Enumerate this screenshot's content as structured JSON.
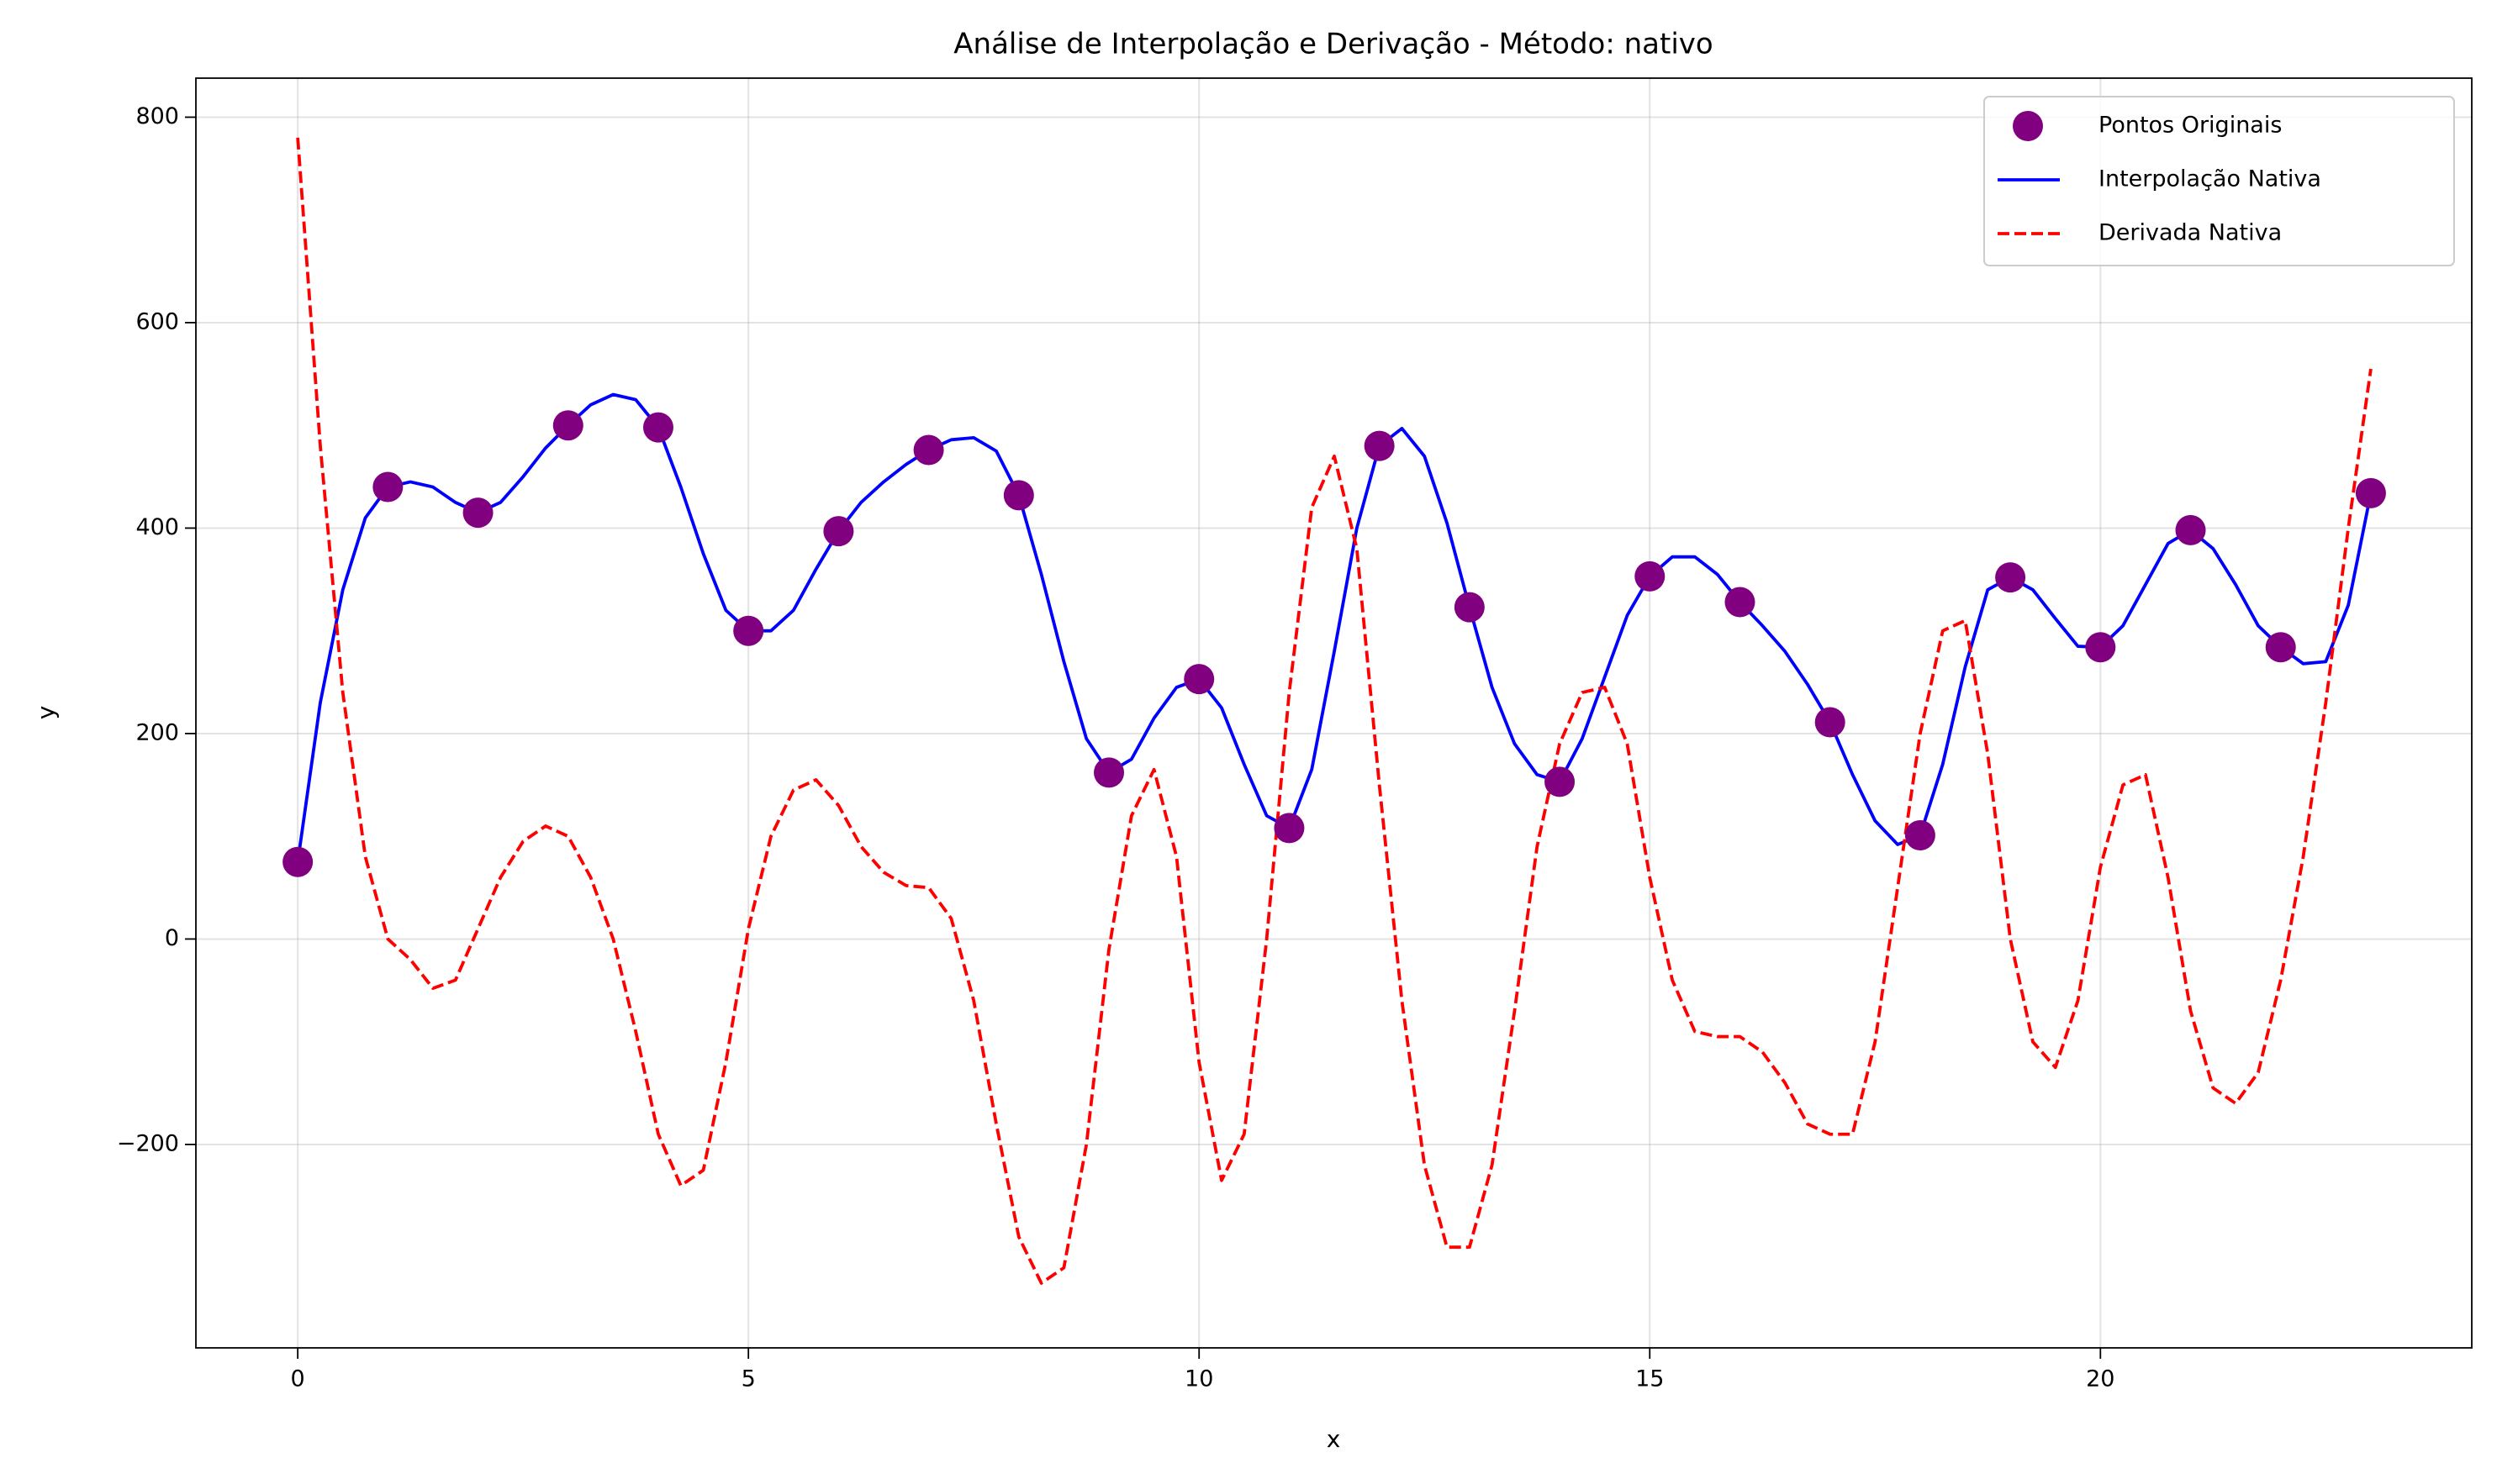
{
  "chart_data": {
    "type": "line",
    "title": "Análise de Interpolação e Derivação - Método: nativo",
    "x_label": "x",
    "y_label": "y",
    "xlim": [
      -1.13,
      24.12
    ],
    "ylim": [
      -398,
      838
    ],
    "xticks": [
      0,
      5,
      10,
      15,
      20
    ],
    "yticks": [
      {
        "value": -200,
        "label": "−200"
      },
      0,
      200,
      400,
      600,
      800
    ],
    "grid": true,
    "legend": "upper right",
    "series": [
      {
        "name": "Pontos Originais",
        "type": "scatter",
        "color": "#800080",
        "x": [
          0,
          1,
          2,
          3,
          4,
          5,
          6,
          7,
          8,
          9,
          10,
          11,
          12,
          13,
          14,
          15,
          16,
          17,
          18,
          19,
          20,
          21,
          22,
          23
        ],
        "values": [
          75,
          440,
          415,
          500,
          498,
          300,
          397,
          476,
          432,
          162,
          253,
          108,
          480,
          323,
          153,
          353,
          328,
          211,
          101,
          352,
          284,
          398,
          284,
          434
        ]
      },
      {
        "name": "Interpolação Nativa",
        "type": "line",
        "color": "#0000ff",
        "dash": "solid",
        "x": [
          0,
          0.25,
          0.5,
          0.75,
          1,
          1.25,
          1.5,
          1.75,
          2,
          2.25,
          2.5,
          2.75,
          3,
          3.25,
          3.5,
          3.75,
          4,
          4.25,
          4.5,
          4.75,
          5,
          5.25,
          5.5,
          5.75,
          6,
          6.25,
          6.5,
          6.75,
          7,
          7.25,
          7.5,
          7.75,
          8,
          8.25,
          8.5,
          8.75,
          9,
          9.25,
          9.5,
          9.75,
          10,
          10.25,
          10.5,
          10.75,
          11,
          11.25,
          11.5,
          11.75,
          12,
          12.25,
          12.5,
          12.75,
          13,
          13.25,
          13.5,
          13.75,
          14,
          14.25,
          14.5,
          14.75,
          15,
          15.25,
          15.5,
          15.75,
          16,
          16.25,
          16.5,
          16.75,
          17,
          17.25,
          17.5,
          17.75,
          18,
          18.25,
          18.5,
          18.75,
          19,
          19.25,
          19.5,
          19.75,
          20,
          20.25,
          20.5,
          20.75,
          21,
          21.25,
          21.5,
          21.75,
          22,
          22.25,
          22.5,
          22.75,
          23
        ],
        "values": [
          75,
          230,
          340,
          410,
          440,
          445,
          440,
          425,
          415,
          425,
          450,
          478,
          500,
          520,
          530,
          525,
          498,
          440,
          375,
          320,
          300,
          300,
          320,
          360,
          397,
          425,
          445,
          462,
          476,
          486,
          488,
          475,
          432,
          355,
          270,
          195,
          162,
          175,
          215,
          245,
          253,
          225,
          170,
          120,
          108,
          165,
          280,
          400,
          480,
          497,
          470,
          405,
          323,
          245,
          190,
          160,
          153,
          195,
          255,
          315,
          353,
          372,
          372,
          355,
          328,
          305,
          280,
          248,
          211,
          160,
          115,
          92,
          101,
          170,
          265,
          340,
          352,
          340,
          312,
          285,
          284,
          305,
          345,
          385,
          398,
          380,
          345,
          305,
          284,
          268,
          270,
          325,
          434
        ]
      },
      {
        "name": "Derivada Nativa",
        "type": "line",
        "color": "#ff0000",
        "dash": "dashed",
        "x": [
          0,
          0.25,
          0.5,
          0.75,
          1,
          1.25,
          1.5,
          1.75,
          2,
          2.25,
          2.5,
          2.75,
          3,
          3.25,
          3.5,
          3.75,
          4,
          4.25,
          4.5,
          4.75,
          5,
          5.25,
          5.5,
          5.75,
          6,
          6.25,
          6.5,
          6.75,
          7,
          7.25,
          7.5,
          7.75,
          8,
          8.25,
          8.5,
          8.75,
          9,
          9.25,
          9.5,
          9.75,
          10,
          10.25,
          10.5,
          10.75,
          11,
          11.25,
          11.5,
          11.75,
          12,
          12.25,
          12.5,
          12.75,
          13,
          13.25,
          13.5,
          13.75,
          14,
          14.25,
          14.5,
          14.75,
          15,
          15.25,
          15.5,
          15.75,
          16,
          16.25,
          16.5,
          16.75,
          17,
          17.25,
          17.5,
          17.75,
          18,
          18.25,
          18.5,
          18.75,
          19,
          19.25,
          19.5,
          19.75,
          20,
          20.25,
          20.5,
          20.75,
          21,
          21.25,
          21.5,
          21.75,
          22,
          22.25,
          22.5,
          22.75,
          23
        ],
        "values": [
          780,
          480,
          240,
          80,
          0,
          -20,
          -48,
          -40,
          10,
          60,
          95,
          110,
          100,
          60,
          0,
          -90,
          -190,
          -240,
          -225,
          -120,
          10,
          100,
          145,
          155,
          130,
          90,
          65,
          52,
          50,
          20,
          -60,
          -180,
          -290,
          -335,
          -320,
          -200,
          -10,
          120,
          165,
          80,
          -120,
          -235,
          -190,
          0,
          240,
          420,
          470,
          380,
          150,
          -60,
          -220,
          -300,
          -300,
          -220,
          -70,
          90,
          190,
          240,
          245,
          190,
          60,
          -40,
          -90,
          -95,
          -95,
          -110,
          -140,
          -180,
          -190,
          -190,
          -100,
          50,
          200,
          300,
          310,
          180,
          0,
          -100,
          -125,
          -60,
          70,
          150,
          160,
          60,
          -70,
          -145,
          -160,
          -130,
          -40,
          80,
          230,
          400,
          555
        ]
      }
    ]
  }
}
